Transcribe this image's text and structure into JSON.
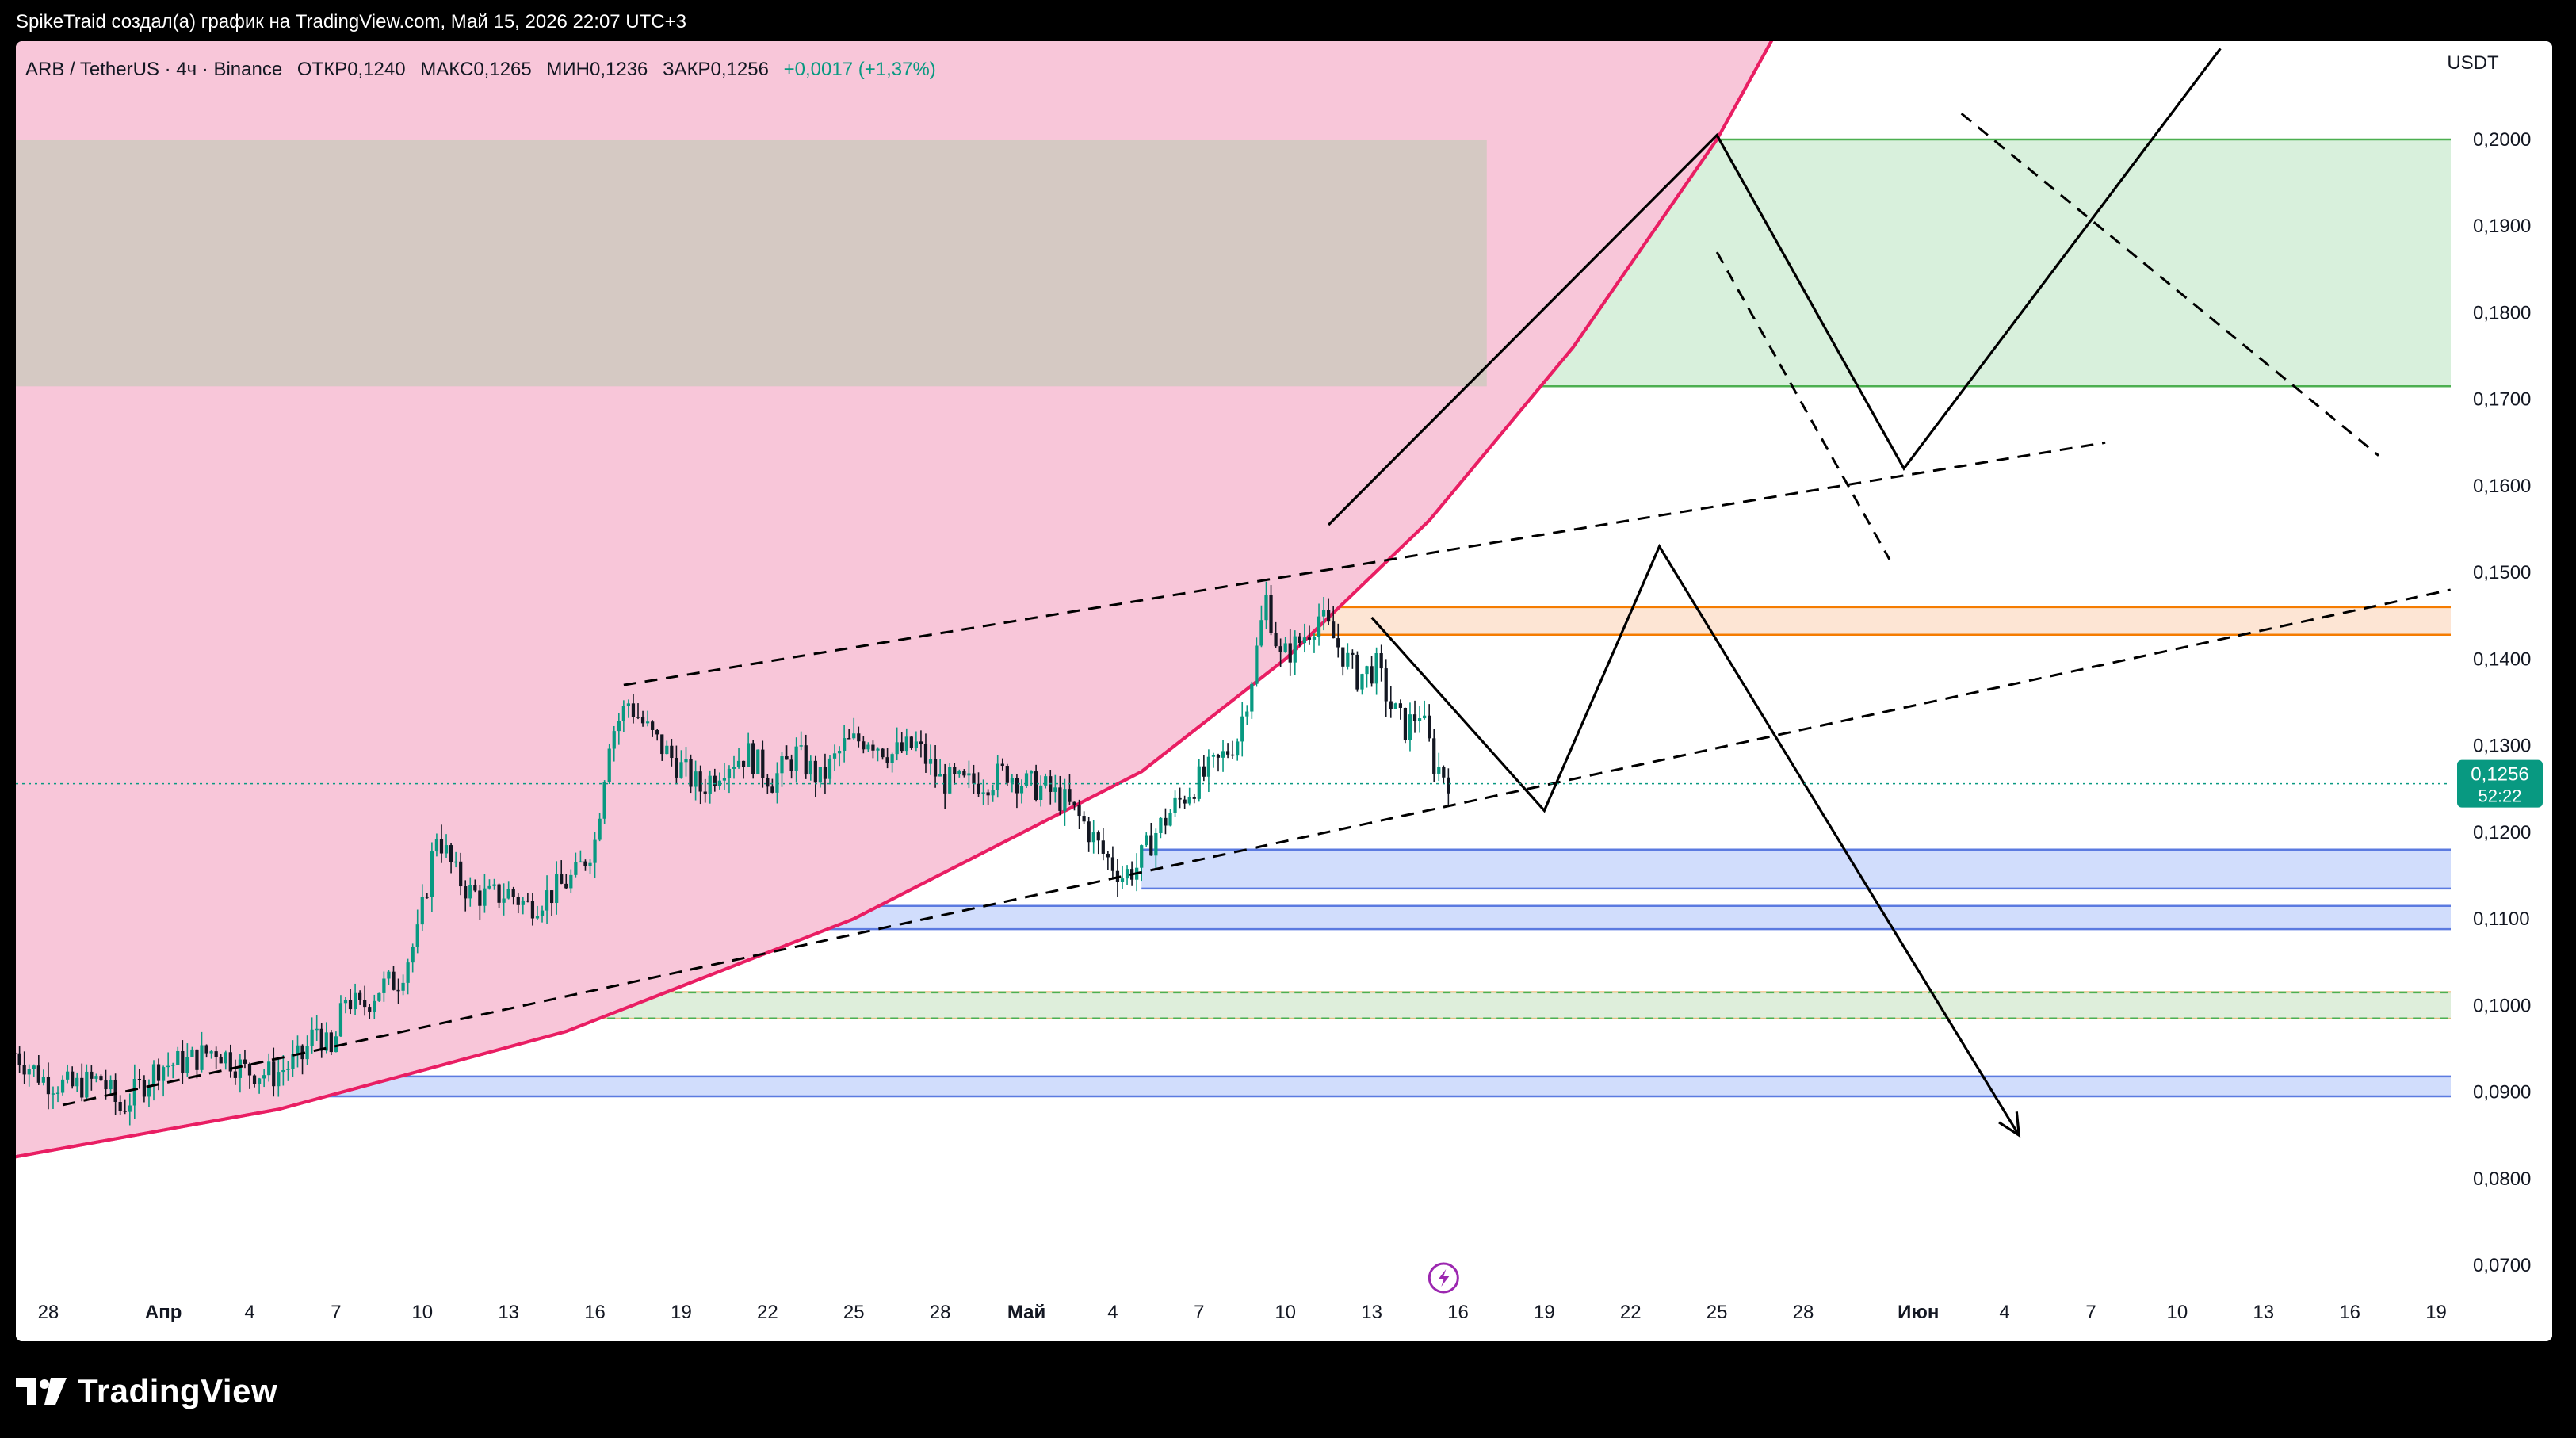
{
  "header": {
    "attribution": "SpikeTraid создал(а) график на TradingView.com, Май 15, 2026 22:07 UTC+3"
  },
  "legend": {
    "symbol": "ARB / TetherUS · 4ч · Binance",
    "open": "ОТКР0,1240",
    "high": "МАКС0,1265",
    "low": "МИН0,1236",
    "close": "ЗАКР0,1256",
    "change": "+0,0017 (+1,37%)"
  },
  "price_scale": {
    "currency": "USDT"
  },
  "last_price": {
    "value": "0,1256",
    "countdown": "52:22",
    "color": "#089981"
  },
  "brand": {
    "name": "TradingView"
  },
  "colors": {
    "up": "#089981",
    "down": "#131722",
    "pink_zone": "#f8c6d9",
    "pink_curve": "#e91e63",
    "green_zone": "#d8f0dc",
    "green_line": "#4caf50",
    "blue_zone": "#c9d7fb",
    "blue_line": "#5b7ae0",
    "orange_zone": "#fde0cc",
    "orange_line": "#f57c00",
    "grey_overlap": "#d5c9c3"
  },
  "chart_data": {
    "type": "candlestick",
    "x_axis_ticks": [
      {
        "d": "2026-03-28",
        "label": "28"
      },
      {
        "d": "2026-04-01",
        "label": "Апр"
      },
      {
        "d": "2026-04-04",
        "label": "4"
      },
      {
        "d": "2026-04-07",
        "label": "7"
      },
      {
        "d": "2026-04-10",
        "label": "10"
      },
      {
        "d": "2026-04-13",
        "label": "13"
      },
      {
        "d": "2026-04-16",
        "label": "16"
      },
      {
        "d": "2026-04-19",
        "label": "19"
      },
      {
        "d": "2026-04-22",
        "label": "22"
      },
      {
        "d": "2026-04-25",
        "label": "25"
      },
      {
        "d": "2026-04-28",
        "label": "28"
      },
      {
        "d": "2026-05-01",
        "label": "Май"
      },
      {
        "d": "2026-05-04",
        "label": "4"
      },
      {
        "d": "2026-05-07",
        "label": "7"
      },
      {
        "d": "2026-05-10",
        "label": "10"
      },
      {
        "d": "2026-05-13",
        "label": "13"
      },
      {
        "d": "2026-05-16",
        "label": "16"
      },
      {
        "d": "2026-05-19",
        "label": "19"
      },
      {
        "d": "2026-05-22",
        "label": "22"
      },
      {
        "d": "2026-05-25",
        "label": "25"
      },
      {
        "d": "2026-05-28",
        "label": "28"
      },
      {
        "d": "2026-06-01",
        "label": "Июн"
      },
      {
        "d": "2026-06-04",
        "label": "4"
      },
      {
        "d": "2026-06-07",
        "label": "7"
      },
      {
        "d": "2026-06-10",
        "label": "10"
      },
      {
        "d": "2026-06-13",
        "label": "13"
      },
      {
        "d": "2026-06-16",
        "label": "16"
      },
      {
        "d": "2026-06-19",
        "label": "19"
      }
    ],
    "y_axis_ticks": [
      {
        "v": 0.07,
        "label": "0,0700"
      },
      {
        "v": 0.08,
        "label": "0,0800"
      },
      {
        "v": 0.09,
        "label": "0,0900"
      },
      {
        "v": 0.1,
        "label": "0,1000"
      },
      {
        "v": 0.11,
        "label": "0,1100"
      },
      {
        "v": 0.12,
        "label": "0,1200"
      },
      {
        "v": 0.13,
        "label": "0,1300"
      },
      {
        "v": 0.14,
        "label": "0,1400"
      },
      {
        "v": 0.15,
        "label": "0,1500"
      },
      {
        "v": 0.16,
        "label": "0,1600"
      },
      {
        "v": 0.17,
        "label": "0,1700"
      },
      {
        "v": 0.18,
        "label": "0,1800"
      },
      {
        "v": 0.19,
        "label": "0,1900"
      },
      {
        "v": 0.2,
        "label": "0,2000"
      }
    ],
    "last_close": 0.1256,
    "close_path": [
      [
        "2026-03-26T20:00",
        0.0945
      ],
      [
        "2026-03-27T20:00",
        0.0915
      ],
      [
        "2026-03-28T20:00",
        0.0905
      ],
      [
        "2026-03-29T20:00",
        0.0915
      ],
      [
        "2026-03-30T12:00",
        0.088
      ],
      [
        "2026-03-31T04:00",
        0.0905
      ],
      [
        "2026-03-31T20:00",
        0.093
      ],
      [
        "2026-04-01T20:00",
        0.0935
      ],
      [
        "2026-04-02T20:00",
        0.095
      ],
      [
        "2026-04-03T20:00",
        0.0925
      ],
      [
        "2026-04-04T20:00",
        0.092
      ],
      [
        "2026-04-05T20:00",
        0.094
      ],
      [
        "2026-04-06T08:00",
        0.0975
      ],
      [
        "2026-04-06T20:00",
        0.094
      ],
      [
        "2026-04-07T08:00",
        0.101
      ],
      [
        "2026-04-07T20:00",
        0.0995
      ],
      [
        "2026-04-08T12:00",
        0.102
      ],
      [
        "2026-04-09T04:00",
        0.103
      ],
      [
        "2026-04-09T20:00",
        0.108
      ],
      [
        "2026-04-10T12:00",
        0.12
      ],
      [
        "2026-04-11T04:00",
        0.115
      ],
      [
        "2026-04-11T16:00",
        0.113
      ],
      [
        "2026-04-12T08:00",
        0.1125
      ],
      [
        "2026-04-13T00:00",
        0.113
      ],
      [
        "2026-04-13T16:00",
        0.1115
      ],
      [
        "2026-04-14T12:00",
        0.113
      ],
      [
        "2026-04-15T08:00",
        0.115
      ],
      [
        "2026-04-16T00:00",
        0.119
      ],
      [
        "2026-04-16T12:00",
        0.131
      ],
      [
        "2026-04-17T04:00",
        0.135
      ],
      [
        "2026-04-18T00:00",
        0.131
      ],
      [
        "2026-04-18T20:00",
        0.128
      ],
      [
        "2026-04-19T16:00",
        0.125
      ],
      [
        "2026-04-20T12:00",
        0.128
      ],
      [
        "2026-04-21T08:00",
        0.129
      ],
      [
        "2026-04-22T04:00",
        0.126
      ],
      [
        "2026-04-23T00:00",
        0.129
      ],
      [
        "2026-04-23T20:00",
        0.126
      ],
      [
        "2026-04-24T16:00",
        0.13
      ],
      [
        "2026-04-25T12:00",
        0.131
      ],
      [
        "2026-04-26T08:00",
        0.129
      ],
      [
        "2026-04-27T04:00",
        0.13
      ],
      [
        "2026-04-28T00:00",
        0.126
      ],
      [
        "2026-04-28T20:00",
        0.1255
      ],
      [
        "2026-04-29T16:00",
        0.126
      ],
      [
        "2026-04-30T08:00",
        0.127
      ],
      [
        "2026-05-01T00:00",
        0.1255
      ],
      [
        "2026-05-01T16:00",
        0.125
      ],
      [
        "2026-05-02T08:00",
        0.1235
      ],
      [
        "2026-05-03T00:00",
        0.121
      ],
      [
        "2026-05-03T16:00",
        0.1175
      ],
      [
        "2026-05-04T08:00",
        0.115
      ],
      [
        "2026-05-04T20:00",
        0.116
      ],
      [
        "2026-05-05T12:00",
        0.12
      ],
      [
        "2026-05-06T04:00",
        0.123
      ],
      [
        "2026-05-06T20:00",
        0.1255
      ],
      [
        "2026-05-07T16:00",
        0.128
      ],
      [
        "2026-05-08T08:00",
        0.131
      ],
      [
        "2026-05-08T20:00",
        0.138
      ],
      [
        "2026-05-09T08:00",
        0.147
      ],
      [
        "2026-05-09T20:00",
        0.14
      ],
      [
        "2026-05-10T12:00",
        0.142
      ],
      [
        "2026-05-11T04:00",
        0.145
      ],
      [
        "2026-05-11T20:00",
        0.1415
      ],
      [
        "2026-05-12T12:00",
        0.138
      ],
      [
        "2026-05-13T04:00",
        0.139
      ],
      [
        "2026-05-13T16:00",
        0.1345
      ],
      [
        "2026-05-14T04:00",
        0.132
      ],
      [
        "2026-05-14T16:00",
        0.134
      ],
      [
        "2026-05-15T04:00",
        0.128
      ],
      [
        "2026-05-15T20:00",
        0.1256
      ]
    ],
    "zones": [
      {
        "kind": "green",
        "from_date": "2026-03-26",
        "from": 0.1715,
        "to": 0.2
      },
      {
        "kind": "blue",
        "from_date": "2026-05-05",
        "from": 0.1135,
        "to": 0.118
      },
      {
        "kind": "blue",
        "from_date": "2026-04-15",
        "from": 0.1088,
        "to": 0.1115
      },
      {
        "kind": "blue",
        "from_date": "2026-04-05",
        "from": 0.0895,
        "to": 0.0918
      },
      {
        "kind": "orange",
        "from_date": "2026-05-10",
        "from": 0.1428,
        "to": 0.146
      },
      {
        "kind": "orange",
        "from_date": "2026-03-26",
        "from": 0.0985,
        "to": 0.1015
      },
      {
        "kind": "dashed-green",
        "from_date": "2026-04-08",
        "from": 0.0985,
        "to": 0.1015
      }
    ],
    "pink_curve": [
      [
        "2026-03-26",
        0.082
      ],
      [
        "2026-04-05",
        0.088
      ],
      [
        "2026-04-15",
        0.097
      ],
      [
        "2026-04-25",
        0.11
      ],
      [
        "2026-05-05",
        0.127
      ],
      [
        "2026-05-10",
        0.14
      ],
      [
        "2026-05-15",
        0.156
      ],
      [
        "2026-05-20",
        0.176
      ],
      [
        "2026-05-25",
        0.2
      ],
      [
        "2026-05-29",
        0.224
      ]
    ],
    "dashed_lines": [
      [
        [
          "2026-03-28T12:00",
          0.0885
        ],
        [
          "2026-06-19T12:00",
          0.148
        ]
      ],
      [
        [
          "2026-04-17T00:00",
          0.137
        ],
        [
          "2026-06-07T12:00",
          0.165
        ]
      ],
      [
        [
          "2026-05-25T00:00",
          0.187
        ],
        [
          "2026-05-31T00:00",
          0.1515
        ]
      ],
      [
        [
          "2026-06-02T12:00",
          0.203
        ],
        [
          "2026-06-17T00:00",
          0.1635
        ]
      ]
    ],
    "paths": [
      {
        "points": [
          [
            "2026-05-11T12:00",
            0.1555
          ],
          [
            "2026-05-25T00:00",
            0.2005
          ],
          [
            "2026-05-31T12:00",
            0.162
          ],
          [
            "2026-06-11T12:00",
            0.2105
          ]
        ],
        "arrow": false
      },
      {
        "points": [
          [
            "2026-05-13T00:00",
            0.1448
          ],
          [
            "2026-05-19T00:00",
            0.1225
          ],
          [
            "2026-05-23T00:00",
            0.153
          ],
          [
            "2026-06-04T12:00",
            0.085
          ]
        ],
        "arrow": true
      }
    ],
    "ylim": [
      0.0655,
      0.2095
    ]
  }
}
